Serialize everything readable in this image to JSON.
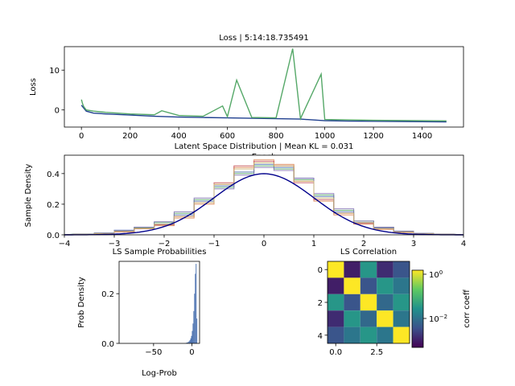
{
  "figure_title": "",
  "chart_data": [
    {
      "type": "line",
      "title": "Loss | 5:14:18.735491",
      "xlabel": "Epoch",
      "ylabel": "Loss",
      "xlim": [
        -70,
        1570
      ],
      "ylim": [
        -4.3,
        15.9
      ],
      "xticks": [
        0,
        200,
        400,
        600,
        800,
        1000,
        1200,
        1400
      ],
      "yticks": [
        0,
        10
      ],
      "series": [
        {
          "color": "#1f3f8f",
          "x": [
            0,
            20,
            50,
            100,
            200,
            300,
            400,
            500,
            600,
            700,
            800,
            900,
            1000,
            1100,
            1200,
            1300,
            1400,
            1500
          ],
          "y": [
            1.2,
            -0.3,
            -0.8,
            -1.0,
            -1.3,
            -1.6,
            -1.8,
            -1.9,
            -2.0,
            -2.1,
            -2.2,
            -2.3,
            -2.7,
            -2.8,
            -2.85,
            -2.9,
            -2.95,
            -3.0
          ]
        },
        {
          "color": "#55a868",
          "x": [
            0,
            5,
            10,
            20,
            50,
            100,
            150,
            200,
            250,
            300,
            330,
            400,
            500,
            580,
            600,
            638,
            700,
            800,
            868,
            900,
            985,
            1000,
            1100,
            1200,
            1300,
            1400,
            1500
          ],
          "y": [
            2.6,
            1.5,
            0.8,
            0.0,
            -0.3,
            -0.6,
            -0.8,
            -1.0,
            -1.1,
            -1.2,
            -0.2,
            -1.4,
            -1.6,
            1.0,
            -1.7,
            7.5,
            -1.9,
            -2.0,
            15.4,
            -2.2,
            9.0,
            -2.4,
            -2.5,
            -2.6,
            -2.65,
            -2.7,
            -2.75
          ]
        }
      ]
    },
    {
      "type": "line",
      "title": "Latent Space Distribution | Mean KL = 0.031",
      "xlabel": "",
      "ylabel": "Sample Density",
      "xlim": [
        -4,
        4
      ],
      "ylim": [
        0,
        0.52
      ],
      "xticks": [
        -4,
        -3,
        -2,
        -1,
        0,
        1,
        2,
        3,
        4
      ],
      "yticks": [
        0.0,
        0.2,
        0.4
      ],
      "reference": {
        "name": "standard normal pdf",
        "color": "#00008b",
        "mean": 0,
        "std": 1
      },
      "step_series": [
        {
          "color": "#4c72b0",
          "x": [
            -3.6,
            -3.2,
            -2.8,
            -2.4,
            -2.0,
            -1.6,
            -1.2,
            -0.8,
            -0.4,
            0.0,
            0.4,
            0.8,
            1.2,
            1.6,
            2.0,
            2.4,
            2.8,
            3.2,
            3.6
          ],
          "y": [
            0.004,
            0.01,
            0.03,
            0.05,
            0.07,
            0.13,
            0.22,
            0.32,
            0.41,
            0.46,
            0.44,
            0.37,
            0.25,
            0.15,
            0.08,
            0.045,
            0.02,
            0.008,
            0.003
          ]
        },
        {
          "color": "#dd8452",
          "x": [
            -3.6,
            -3.2,
            -2.8,
            -2.4,
            -2.0,
            -1.6,
            -1.2,
            -0.8,
            -0.4,
            0.0,
            0.4,
            0.8,
            1.2,
            1.6,
            2.0,
            2.4,
            2.8,
            3.2,
            3.6
          ],
          "y": [
            0.003,
            0.008,
            0.02,
            0.04,
            0.06,
            0.11,
            0.2,
            0.33,
            0.44,
            0.49,
            0.46,
            0.35,
            0.22,
            0.13,
            0.07,
            0.035,
            0.015,
            0.006,
            0.002
          ]
        },
        {
          "color": "#55a868",
          "x": [
            -3.6,
            -3.2,
            -2.8,
            -2.4,
            -2.0,
            -1.6,
            -1.2,
            -0.8,
            -0.4,
            0.0,
            0.4,
            0.8,
            1.2,
            1.6,
            2.0,
            2.4,
            2.8,
            3.2,
            3.6
          ],
          "y": [
            0.005,
            0.012,
            0.025,
            0.045,
            0.08,
            0.14,
            0.23,
            0.31,
            0.4,
            0.45,
            0.43,
            0.36,
            0.26,
            0.16,
            0.09,
            0.05,
            0.022,
            0.009,
            0.004
          ]
        },
        {
          "color": "#c44e52",
          "x": [
            -3.6,
            -3.2,
            -2.8,
            -2.4,
            -2.0,
            -1.6,
            -1.2,
            -0.8,
            -0.4,
            0.0,
            0.4,
            0.8,
            1.2,
            1.6,
            2.0,
            2.4,
            2.8,
            3.2,
            3.6
          ],
          "y": [
            0.003,
            0.009,
            0.02,
            0.04,
            0.065,
            0.12,
            0.21,
            0.34,
            0.45,
            0.48,
            0.45,
            0.34,
            0.23,
            0.14,
            0.075,
            0.04,
            0.018,
            0.007,
            0.003
          ]
        },
        {
          "color": "#8172b3",
          "x": [
            -3.6,
            -3.2,
            -2.8,
            -2.4,
            -2.0,
            -1.6,
            -1.2,
            -0.8,
            -0.4,
            0.0,
            0.4,
            0.8,
            1.2,
            1.6,
            2.0,
            2.4,
            2.8,
            3.2,
            3.6
          ],
          "y": [
            0.004,
            0.011,
            0.028,
            0.05,
            0.085,
            0.15,
            0.24,
            0.3,
            0.39,
            0.44,
            0.42,
            0.37,
            0.27,
            0.17,
            0.09,
            0.05,
            0.024,
            0.01,
            0.004
          ]
        },
        {
          "color": "#ccb974",
          "x": [
            -3.6,
            -3.2,
            -2.8,
            -2.4,
            -2.0,
            -1.6,
            -1.2,
            -0.8,
            -0.4,
            0.0,
            0.4,
            0.8,
            1.2,
            1.6,
            2.0,
            2.4,
            2.8,
            3.2,
            3.6
          ],
          "y": [
            0.003,
            0.008,
            0.022,
            0.042,
            0.07,
            0.12,
            0.21,
            0.33,
            0.43,
            0.47,
            0.45,
            0.35,
            0.24,
            0.14,
            0.08,
            0.04,
            0.017,
            0.007,
            0.003
          ]
        }
      ]
    },
    {
      "type": "bar",
      "title": "LS Sample Probabilities",
      "xlabel": "Log-Prob",
      "ylabel": "Prob Density",
      "xlim": [
        -95,
        10
      ],
      "ylim": [
        0,
        0.33
      ],
      "xticks": [
        -50,
        0
      ],
      "yticks": [
        0.0,
        0.2
      ],
      "bar_color": "#4c72b0",
      "bins": [
        -8,
        -7,
        -6,
        -5,
        -4,
        -3,
        -2,
        -1,
        0,
        1,
        2,
        3,
        4,
        5,
        6
      ],
      "values": [
        0.002,
        0.003,
        0.004,
        0.006,
        0.009,
        0.013,
        0.02,
        0.03,
        0.05,
        0.08,
        0.13,
        0.2,
        0.28,
        0.32,
        0.1
      ]
    },
    {
      "type": "heatmap",
      "title": "LS Correlation",
      "colorbar_label": "corr coeff",
      "colorbar_ticks": [
        "10^0",
        "10^-2"
      ],
      "xticks": [
        0.0,
        2.5
      ],
      "yticks": [
        0,
        2,
        4
      ],
      "matrix": [
        [
          1.0,
          0.008,
          0.08,
          0.01,
          0.02
        ],
        [
          0.008,
          1.0,
          0.02,
          0.08,
          0.04
        ],
        [
          0.08,
          0.02,
          1.0,
          0.03,
          0.08
        ],
        [
          0.01,
          0.08,
          0.03,
          1.0,
          0.04
        ],
        [
          0.02,
          0.04,
          0.08,
          0.04,
          1.0
        ]
      ]
    }
  ]
}
